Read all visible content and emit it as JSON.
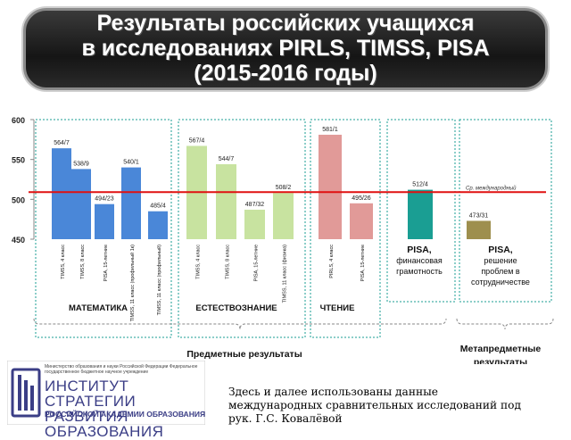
{
  "header": {
    "title_line1": "Результаты российских учащихся",
    "title_line2": "в исследованиях PIRLS, TIMSS, PISA",
    "title_line3": "(2015-2016 годы)"
  },
  "colors": {
    "math": "#4a87d8",
    "science": "#c8e3a0",
    "reading": "#e19a98",
    "finance": "#1a9e93",
    "collab": "#9e8f4e",
    "oecd_line": "#e01010"
  },
  "chart_data": {
    "type": "bar",
    "ylim": [
      450,
      600
    ],
    "yticks": [
      450,
      500,
      550,
      600
    ],
    "reference": {
      "value": 509,
      "label": "Ср. международный"
    },
    "groups": [
      {
        "name": "МАТЕМАТИКА",
        "series": "math",
        "bars": [
          {
            "label": "TIMSS, 4 класс",
            "value": 564,
            "value_label": "564/7"
          },
          {
            "label": "TIMSS, 8 класс",
            "value": 538,
            "value_label": "538/9"
          },
          {
            "label": "PISA, 15-летние",
            "value": 494,
            "value_label": "494/23"
          },
          {
            "label": "TIMSS, 11 класс (профильный 1к)",
            "value": 540,
            "value_label": "540/1"
          },
          {
            "label": "TIMSS, 11 класс (профильный)",
            "value": 485,
            "value_label": "485/4"
          }
        ]
      },
      {
        "name": "ЕСТЕСТВОЗНАНИЕ",
        "series": "science",
        "bars": [
          {
            "label": "TIMSS, 4 класс",
            "value": 567,
            "value_label": "567/4"
          },
          {
            "label": "TIMSS, 8 класс",
            "value": 544,
            "value_label": "544/7"
          },
          {
            "label": "PISA, 15-летние",
            "value": 487,
            "value_label": "487/32"
          },
          {
            "label": "TIMSS, 11 класс (физика)",
            "value": 508,
            "value_label": "508/2"
          }
        ]
      },
      {
        "name": "ЧТЕНИЕ",
        "series": "reading",
        "bars": [
          {
            "label": "PIRLS, 4 класс",
            "value": 581,
            "value_label": "581/1"
          },
          {
            "label": "PISA, 15-летние",
            "value": 495,
            "value_label": "495/26"
          }
        ]
      },
      {
        "name": "",
        "series": "finance",
        "bars": [
          {
            "label": "PISA, финансовая грамотность",
            "value": 512,
            "value_label": "512/4"
          }
        ]
      },
      {
        "name": "",
        "series": "collab",
        "bars": [
          {
            "label": "PISA, решение проблем в сотрудничестве",
            "value": 473,
            "value_label": "473/31"
          }
        ]
      }
    ],
    "brace_labels": {
      "subject": "Предметные результаты",
      "meta_line1": "Метапредметные",
      "meta_line2": "результаты"
    }
  },
  "footer": {
    "org_small": "Министерство образования и науки Российской Федерации Федеральное государственное бюджетное научное учреждение",
    "org_line1": "ИНСТИТУТ СТРАТЕГИИ",
    "org_line2": "РАЗВИТИЯ ОБРАЗОВАНИЯ",
    "org_line3": "РОССИЙСКОЙ АКАДЕМИИ ОБРАЗОВАНИЯ",
    "note": "Здесь и далее использованы данные международных сравнительных исследований под рук. Г.С. Ковалёвой"
  }
}
